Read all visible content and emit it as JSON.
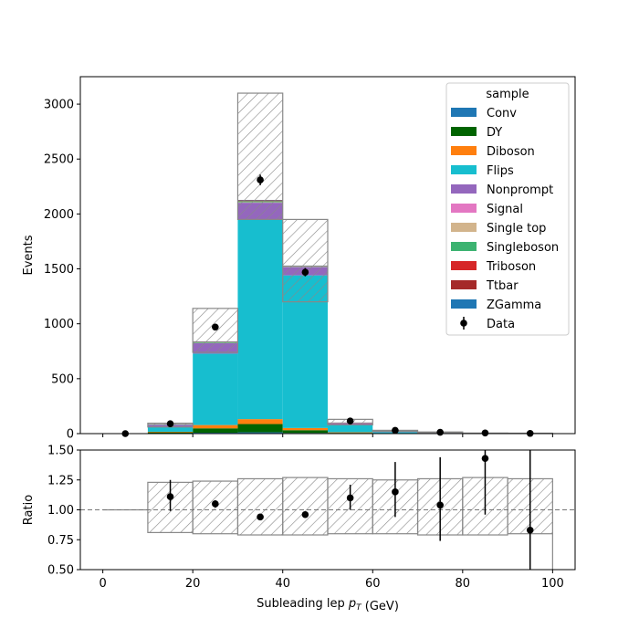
{
  "chart_data": [
    {
      "type": "bar",
      "stacked": true,
      "xlabel": "",
      "ylabel": "Events",
      "xlim": [
        -5,
        105
      ],
      "ylim": [
        0,
        3250
      ],
      "yticks": [
        0,
        500,
        1000,
        1500,
        2000,
        2500,
        3000
      ],
      "ytick_labels": [
        "0",
        "500",
        "1000",
        "1500",
        "2000",
        "2500",
        "3000"
      ],
      "bin_edges": [
        0,
        10,
        20,
        30,
        40,
        50,
        60,
        70,
        80,
        90,
        100
      ],
      "legend_title": "sample",
      "legend_position": "top-right",
      "series": [
        {
          "name": "Conv",
          "color": "#1f77b4",
          "values": [
            0,
            2,
            8,
            12,
            6,
            2,
            0,
            0,
            0,
            0
          ]
        },
        {
          "name": "DY",
          "color": "#006400",
          "values": [
            0,
            10,
            40,
            75,
            25,
            5,
            2,
            1,
            0,
            0
          ]
        },
        {
          "name": "Diboson",
          "color": "#ff7f0e",
          "values": [
            0,
            5,
            30,
            45,
            20,
            5,
            2,
            1,
            0,
            0
          ]
        },
        {
          "name": "Flips",
          "color": "#17becf",
          "values": [
            0,
            45,
            650,
            1820,
            1390,
            70,
            10,
            3,
            1,
            1
          ]
        },
        {
          "name": "Nonprompt",
          "color": "#9467bd",
          "values": [
            0,
            18,
            95,
            150,
            75,
            12,
            3,
            2,
            1,
            1
          ]
        },
        {
          "name": "Signal",
          "color": "#e377c2",
          "values": [
            0,
            0,
            1,
            2,
            1,
            0,
            0,
            0,
            0,
            0
          ]
        },
        {
          "name": "Single top",
          "color": "#d2b48c",
          "values": [
            0,
            1,
            2,
            3,
            2,
            1,
            1,
            1,
            0,
            0
          ]
        },
        {
          "name": "Singleboson",
          "color": "#3cb371",
          "values": [
            0,
            4,
            8,
            10,
            5,
            2,
            3,
            1,
            0,
            0
          ]
        },
        {
          "name": "Triboson",
          "color": "#d62728",
          "values": [
            0,
            0,
            1,
            3,
            1,
            0,
            0,
            0,
            0,
            0
          ]
        },
        {
          "name": "Ttbar",
          "color": "#a52a2a",
          "values": [
            0,
            2,
            3,
            5,
            3,
            3,
            3,
            2,
            1,
            1
          ]
        },
        {
          "name": "ZGamma",
          "color": "#1f77b4",
          "values": [
            0,
            1,
            2,
            3,
            2,
            1,
            0,
            0,
            0,
            0
          ]
        }
      ],
      "uncertainty": {
        "low": [
          0,
          60,
          740,
          1950,
          1200,
          80,
          20,
          10,
          3,
          2
        ],
        "high": [
          0,
          95,
          1140,
          3100,
          1950,
          130,
          30,
          15,
          5,
          4
        ]
      },
      "data": {
        "name": "Data",
        "x": [
          5,
          15,
          25,
          35,
          45,
          55,
          65,
          75,
          85,
          95
        ],
        "y": [
          0,
          90,
          970,
          2310,
          1470,
          115,
          30,
          12,
          6,
          2
        ],
        "yerr": [
          0,
          10,
          31,
          48,
          38,
          11,
          5,
          3,
          2,
          1
        ]
      }
    },
    {
      "type": "scatter",
      "xlabel": "Subleading lep $p_T$ (GeV)",
      "ylabel": "Ratio",
      "xlim": [
        -5,
        105
      ],
      "ylim": [
        0.5,
        1.5
      ],
      "xticks": [
        0,
        20,
        40,
        60,
        80,
        100
      ],
      "xtick_labels": [
        "0",
        "20",
        "40",
        "60",
        "80",
        "100"
      ],
      "yticks": [
        0.5,
        0.75,
        1.0,
        1.25,
        1.5
      ],
      "ytick_labels": [
        "0.50",
        "0.75",
        "1.00",
        "1.25",
        "1.50"
      ],
      "reference_line": 1.0,
      "bin_edges": [
        0,
        10,
        20,
        30,
        40,
        50,
        60,
        70,
        80,
        90,
        100
      ],
      "band_low": [
        1.0,
        0.81,
        0.8,
        0.79,
        0.79,
        0.8,
        0.8,
        0.79,
        0.79,
        0.8
      ],
      "band_high": [
        1.0,
        1.23,
        1.24,
        1.26,
        1.27,
        1.26,
        1.25,
        1.26,
        1.27,
        1.26
      ],
      "x": [
        15,
        25,
        35,
        45,
        55,
        65,
        75,
        85,
        95
      ],
      "y": [
        1.11,
        1.05,
        0.94,
        0.96,
        1.1,
        1.15,
        1.04,
        1.43,
        0.83
      ],
      "yerr_low": [
        0.12,
        0.03,
        0.02,
        0.02,
        0.1,
        0.21,
        0.3,
        0.47,
        0.5
      ],
      "yerr_high": [
        0.14,
        0.03,
        0.02,
        0.02,
        0.11,
        0.25,
        0.4,
        0.5,
        0.67
      ]
    }
  ]
}
